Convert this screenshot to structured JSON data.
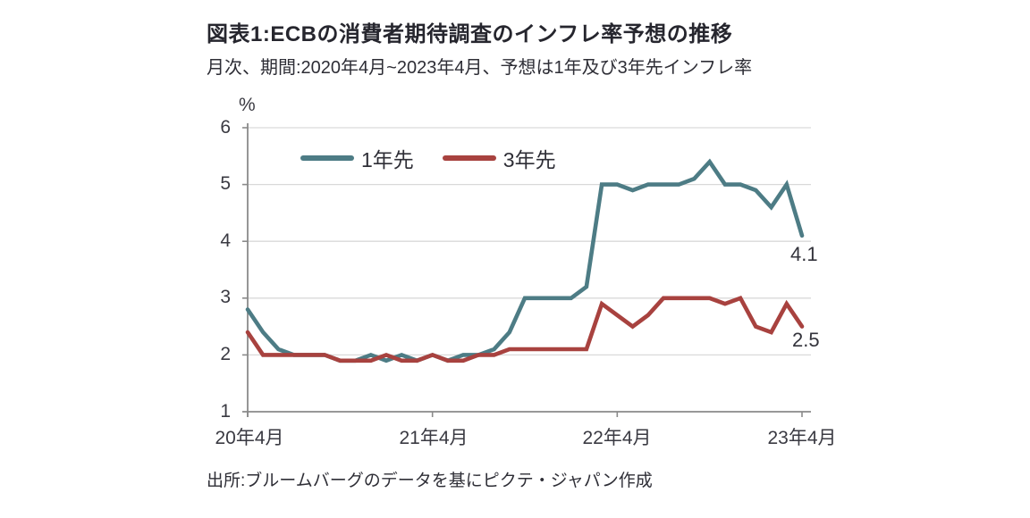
{
  "chart_data": {
    "type": "line",
    "title": "図表1:ECBの消費者期待調査のインフレ率予想の推移",
    "subtitle": "月次、期間:2020年4月~2023年4月、予想は1年及び3年先インフレ率",
    "source": "出所:ブルームバーグのデータを基にピクテ・ジャパン作成",
    "unit": "%",
    "frequency": "monthly",
    "x_start": "2020年4月",
    "x_end": "2023年4月",
    "x_tick_labels": [
      "20年4月",
      "21年4月",
      "22年4月",
      "23年4月"
    ],
    "x_tick_month_indices": [
      0,
      12,
      24,
      36
    ],
    "y_tick_labels": [
      "6",
      "5",
      "4",
      "3",
      "2",
      "1"
    ],
    "ylim": [
      1,
      6
    ],
    "grid": "horizontal",
    "legend_position": "top-left-inside",
    "axis_color": "#8a8a8a",
    "gridline_color": "#d9d9d9",
    "series": [
      {
        "name": "1年先",
        "color": "#4d7c85",
        "end_label": "4.1",
        "values": [
          2.8,
          2.4,
          2.1,
          2.0,
          2.0,
          2.0,
          1.9,
          1.9,
          2.0,
          1.9,
          2.0,
          1.9,
          2.0,
          1.9,
          2.0,
          2.0,
          2.1,
          2.4,
          3.0,
          3.0,
          3.0,
          3.0,
          3.2,
          5.0,
          5.0,
          4.9,
          5.0,
          5.0,
          5.0,
          5.1,
          5.4,
          5.0,
          5.0,
          4.9,
          4.6,
          5.0,
          4.1
        ]
      },
      {
        "name": "3年先",
        "color": "#a8423f",
        "end_label": "2.5",
        "values": [
          2.4,
          2.0,
          2.0,
          2.0,
          2.0,
          2.0,
          1.9,
          1.9,
          1.9,
          2.0,
          1.9,
          1.9,
          2.0,
          1.9,
          1.9,
          2.0,
          2.0,
          2.1,
          2.1,
          2.1,
          2.1,
          2.1,
          2.1,
          2.9,
          2.7,
          2.5,
          2.7,
          3.0,
          3.0,
          3.0,
          3.0,
          2.9,
          3.0,
          2.5,
          2.4,
          2.9,
          2.5
        ]
      }
    ]
  }
}
